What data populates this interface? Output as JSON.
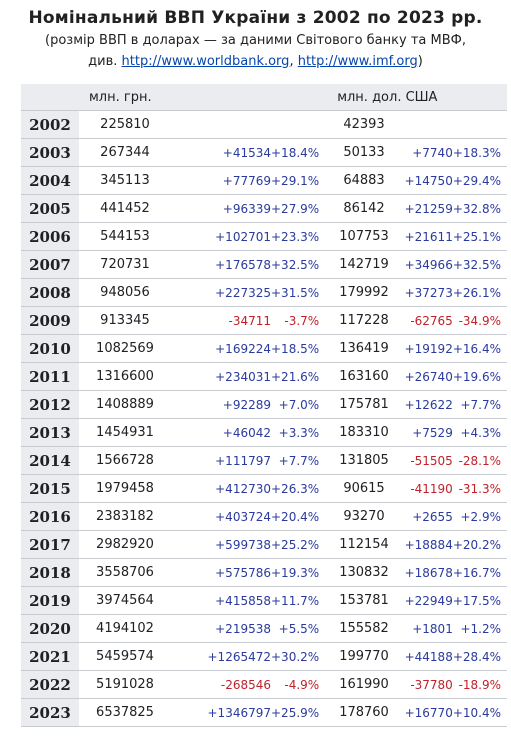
{
  "title": "Номінальний ВВП України з 2002 по 2023 рр.",
  "subtitle_line1": "(розмір ВВП в доларах — за даними Світового банку та МВФ,",
  "subtitle_prefix": "див.",
  "link1": "http://www.worldbank.org",
  "separator": ",",
  "link2": "http://www.imf.org",
  "subtitle_suffix": ")",
  "headers": {
    "uah": "млн. грн.",
    "usd": "млн. дол. США"
  },
  "rows": [
    {
      "year": "2002",
      "uah": "225810",
      "uah_d": "",
      "uah_p": "",
      "usd": "42393",
      "usd_d": "",
      "usd_p": ""
    },
    {
      "year": "2003",
      "uah": "267344",
      "uah_d": "+41534",
      "uah_p": "+18.4%",
      "usd": "50133",
      "usd_d": "+7740",
      "usd_p": "+18.3%"
    },
    {
      "year": "2004",
      "uah": "345113",
      "uah_d": "+77769",
      "uah_p": "+29.1%",
      "usd": "64883",
      "usd_d": "+14750",
      "usd_p": "+29.4%"
    },
    {
      "year": "2005",
      "uah": "441452",
      "uah_d": "+96339",
      "uah_p": "+27.9%",
      "usd": "86142",
      "usd_d": "+21259",
      "usd_p": "+32.8%"
    },
    {
      "year": "2006",
      "uah": "544153",
      "uah_d": "+102701",
      "uah_p": "+23.3%",
      "usd": "107753",
      "usd_d": "+21611",
      "usd_p": "+25.1%"
    },
    {
      "year": "2007",
      "uah": "720731",
      "uah_d": "+176578",
      "uah_p": "+32.5%",
      "usd": "142719",
      "usd_d": "+34966",
      "usd_p": "+32.5%"
    },
    {
      "year": "2008",
      "uah": "948056",
      "uah_d": "+227325",
      "uah_p": "+31.5%",
      "usd": "179992",
      "usd_d": "+37273",
      "usd_p": "+26.1%"
    },
    {
      "year": "2009",
      "uah": "913345",
      "uah_d": "-34711",
      "uah_p": "-3.7%",
      "usd": "117228",
      "usd_d": "-62765",
      "usd_p": "-34.9%"
    },
    {
      "year": "2010",
      "uah": "1082569",
      "uah_d": "+169224",
      "uah_p": "+18.5%",
      "usd": "136419",
      "usd_d": "+19192",
      "usd_p": "+16.4%"
    },
    {
      "year": "2011",
      "uah": "1316600",
      "uah_d": "+234031",
      "uah_p": "+21.6%",
      "usd": "163160",
      "usd_d": "+26740",
      "usd_p": "+19.6%"
    },
    {
      "year": "2012",
      "uah": "1408889",
      "uah_d": "+92289",
      "uah_p": "+7.0%",
      "usd": "175781",
      "usd_d": "+12622",
      "usd_p": "+7.7%"
    },
    {
      "year": "2013",
      "uah": "1454931",
      "uah_d": "+46042",
      "uah_p": "+3.3%",
      "usd": "183310",
      "usd_d": "+7529",
      "usd_p": "+4.3%"
    },
    {
      "year": "2014",
      "uah": "1566728",
      "uah_d": "+111797",
      "uah_p": "+7.7%",
      "usd": "131805",
      "usd_d": "-51505",
      "usd_p": "-28.1%"
    },
    {
      "year": "2015",
      "uah": "1979458",
      "uah_d": "+412730",
      "uah_p": "+26.3%",
      "usd": "90615",
      "usd_d": "-41190",
      "usd_p": "-31.3%"
    },
    {
      "year": "2016",
      "uah": "2383182",
      "uah_d": "+403724",
      "uah_p": "+20.4%",
      "usd": "93270",
      "usd_d": "+2655",
      "usd_p": "+2.9%"
    },
    {
      "year": "2017",
      "uah": "2982920",
      "uah_d": "+599738",
      "uah_p": "+25.2%",
      "usd": "112154",
      "usd_d": "+18884",
      "usd_p": "+20.2%"
    },
    {
      "year": "2018",
      "uah": "3558706",
      "uah_d": "+575786",
      "uah_p": "+19.3%",
      "usd": "130832",
      "usd_d": "+18678",
      "usd_p": "+16.7%"
    },
    {
      "year": "2019",
      "uah": "3974564",
      "uah_d": "+415858",
      "uah_p": "+11.7%",
      "usd": "153781",
      "usd_d": "+22949",
      "usd_p": "+17.5%"
    },
    {
      "year": "2020",
      "uah": "4194102",
      "uah_d": "+219538",
      "uah_p": "+5.5%",
      "usd": "155582",
      "usd_d": "+1801",
      "usd_p": "+1.2%"
    },
    {
      "year": "2021",
      "uah": "5459574",
      "uah_d": "+1265472",
      "uah_p": "+30.2%",
      "usd": "199770",
      "usd_d": "+44188",
      "usd_p": "+28.4%"
    },
    {
      "year": "2022",
      "uah": "5191028",
      "uah_d": "-268546",
      "uah_p": "-4.9%",
      "usd": "161990",
      "usd_d": "-37780",
      "usd_p": "-18.9%"
    },
    {
      "year": "2023",
      "uah": "6537825",
      "uah_d": "+1346797",
      "uah_p": "+25.9%",
      "usd": "178760",
      "usd_d": "+16770",
      "usd_p": "+10.4%"
    }
  ],
  "colors": {
    "positive": "#2a3a9e",
    "negative": "#c0212b",
    "header_bg": "#eaecf0",
    "link": "#0645ad"
  }
}
